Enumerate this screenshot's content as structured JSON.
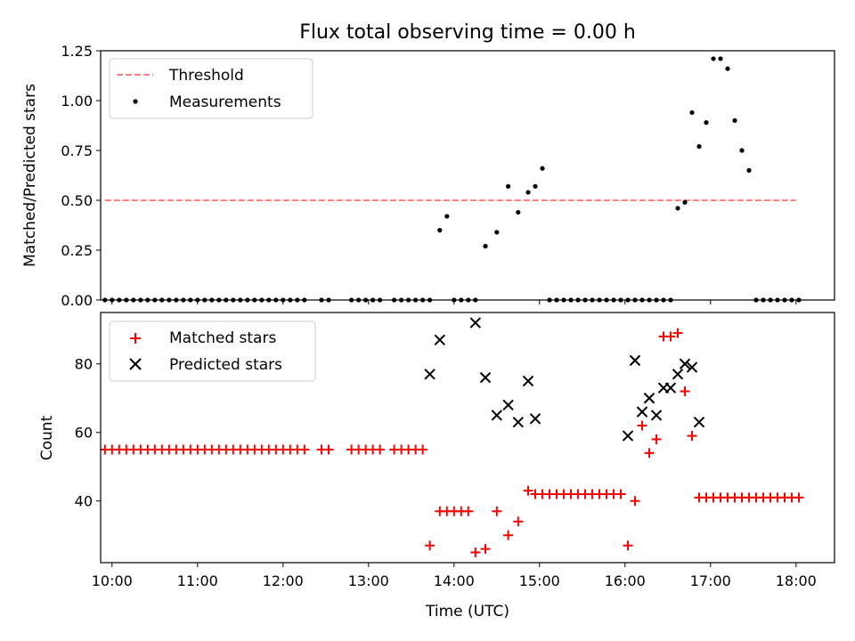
{
  "chart_data": [
    {
      "type": "scatter",
      "title": "Flux total observing time = 0.00 h",
      "xlabel": "",
      "ylabel": "Matched/Predicted stars",
      "xlim": [
        "09:52",
        "18:27"
      ],
      "ylim": [
        0.0,
        1.25
      ],
      "yticks": [
        0.0,
        0.25,
        0.5,
        0.75,
        1.0,
        1.25
      ],
      "ytick_labels": [
        "0.00",
        "0.25",
        "0.50",
        "0.75",
        "1.00",
        "1.25"
      ],
      "legend": {
        "position": "top-left",
        "entries": [
          "Threshold",
          "Measurements"
        ]
      },
      "threshold": {
        "name": "Threshold",
        "value": 0.5,
        "x_range": [
          "09:55",
          "18:00"
        ],
        "color": "#ff8080"
      },
      "series": [
        {
          "name": "Measurements",
          "color": "#000000",
          "x": [
            "09:55",
            "10:00",
            "10:05",
            "10:10",
            "10:15",
            "10:20",
            "10:25",
            "10:30",
            "10:35",
            "10:40",
            "10:45",
            "10:50",
            "10:55",
            "11:00",
            "11:05",
            "11:10",
            "11:15",
            "11:20",
            "11:25",
            "11:30",
            "11:35",
            "11:40",
            "11:45",
            "11:50",
            "11:55",
            "12:00",
            "12:05",
            "12:10",
            "12:15",
            "12:27",
            "12:32",
            "12:48",
            "12:53",
            "12:58",
            "13:03",
            "13:08",
            "13:18",
            "13:23",
            "13:28",
            "13:33",
            "13:38",
            "13:43",
            "13:50",
            "13:55",
            "14:00",
            "14:05",
            "14:10",
            "14:15",
            "14:22",
            "14:30",
            "14:38",
            "14:45",
            "14:52",
            "14:57",
            "15:02",
            "15:07",
            "15:12",
            "15:17",
            "15:22",
            "15:27",
            "15:32",
            "15:37",
            "15:42",
            "15:47",
            "15:52",
            "15:57",
            "16:02",
            "16:07",
            "16:12",
            "16:17",
            "16:22",
            "16:27",
            "16:32",
            "16:37",
            "16:42",
            "16:47",
            "16:52",
            "16:57",
            "17:02",
            "17:07",
            "17:12",
            "17:17",
            "17:22",
            "17:27",
            "17:32",
            "17:37",
            "17:42",
            "17:47",
            "17:52",
            "17:57",
            "18:02"
          ],
          "y": [
            0.0,
            0.0,
            0.0,
            0.0,
            0.0,
            0.0,
            0.0,
            0.0,
            0.0,
            0.0,
            0.0,
            0.0,
            0.0,
            0.0,
            0.0,
            0.0,
            0.0,
            0.0,
            0.0,
            0.0,
            0.0,
            0.0,
            0.0,
            0.0,
            0.0,
            0.0,
            0.0,
            0.0,
            0.0,
            0.0,
            0.0,
            0.0,
            0.0,
            0.0,
            0.0,
            0.0,
            0.0,
            0.0,
            0.0,
            0.0,
            0.0,
            0.0,
            0.35,
            0.42,
            0.0,
            0.0,
            0.0,
            0.0,
            0.27,
            0.34,
            0.57,
            0.44,
            0.54,
            0.57,
            0.66,
            0.0,
            0.0,
            0.0,
            0.0,
            0.0,
            0.0,
            0.0,
            0.0,
            0.0,
            0.0,
            0.0,
            0.0,
            0.0,
            0.0,
            0.0,
            0.0,
            0.0,
            0.0,
            0.46,
            0.49,
            0.94,
            0.77,
            0.89,
            1.21,
            1.21,
            1.16,
            0.9,
            0.75,
            0.65,
            0.0,
            0.0,
            0.0,
            0.0,
            0.0,
            0.0,
            0.0
          ]
        }
      ]
    },
    {
      "type": "scatter",
      "title": "",
      "xlabel": "Time (UTC)",
      "ylabel": "Count",
      "xlim": [
        "09:52",
        "18:27"
      ],
      "ylim": [
        22,
        95
      ],
      "yticks": [
        40,
        60,
        80
      ],
      "ytick_labels": [
        "40",
        "60",
        "80"
      ],
      "xticks": [
        "10:00",
        "11:00",
        "12:00",
        "13:00",
        "14:00",
        "15:00",
        "16:00",
        "17:00",
        "18:00"
      ],
      "xtick_labels": [
        "10:00",
        "11:00",
        "12:00",
        "13:00",
        "14:00",
        "15:00",
        "16:00",
        "17:00",
        "18:00"
      ],
      "legend": {
        "position": "top-left",
        "entries": [
          "Matched stars",
          "Predicted stars"
        ]
      },
      "series": [
        {
          "name": "Matched stars",
          "marker": "plus",
          "color": "#ff0000",
          "x": [
            "09:55",
            "10:00",
            "10:05",
            "10:10",
            "10:15",
            "10:20",
            "10:25",
            "10:30",
            "10:35",
            "10:40",
            "10:45",
            "10:50",
            "10:55",
            "11:00",
            "11:05",
            "11:10",
            "11:15",
            "11:20",
            "11:25",
            "11:30",
            "11:35",
            "11:40",
            "11:45",
            "11:50",
            "11:55",
            "12:00",
            "12:05",
            "12:10",
            "12:15",
            "12:27",
            "12:32",
            "12:48",
            "12:53",
            "12:58",
            "13:03",
            "13:08",
            "13:18",
            "13:23",
            "13:28",
            "13:33",
            "13:38",
            "13:43",
            "13:50",
            "13:55",
            "14:00",
            "14:05",
            "14:10",
            "14:15",
            "14:22",
            "14:30",
            "14:38",
            "14:45",
            "14:52",
            "14:57",
            "15:02",
            "15:07",
            "15:12",
            "15:17",
            "15:22",
            "15:27",
            "15:32",
            "15:37",
            "15:42",
            "15:47",
            "15:52",
            "15:57",
            "16:02",
            "16:07",
            "16:12",
            "16:17",
            "16:22",
            "16:27",
            "16:32",
            "16:37",
            "16:42",
            "16:47",
            "16:52",
            "16:57",
            "17:02",
            "17:07",
            "17:12",
            "17:17",
            "17:22",
            "17:27",
            "17:32",
            "17:37",
            "17:42",
            "17:47",
            "17:52",
            "17:57",
            "18:02"
          ],
          "y": [
            55,
            55,
            55,
            55,
            55,
            55,
            55,
            55,
            55,
            55,
            55,
            55,
            55,
            55,
            55,
            55,
            55,
            55,
            55,
            55,
            55,
            55,
            55,
            55,
            55,
            55,
            55,
            55,
            55,
            55,
            55,
            55,
            55,
            55,
            55,
            55,
            55,
            55,
            55,
            55,
            55,
            27,
            37,
            37,
            37,
            37,
            37,
            25,
            26,
            37,
            30,
            34,
            43,
            42,
            42,
            42,
            42,
            42,
            42,
            42,
            42,
            42,
            42,
            42,
            42,
            42,
            27,
            40,
            62,
            54,
            58,
            88,
            88,
            89,
            72,
            59,
            41,
            41,
            41,
            41,
            41,
            41,
            41,
            41,
            41,
            41,
            41,
            41,
            41,
            41,
            41
          ]
        },
        {
          "name": "Predicted stars",
          "marker": "x",
          "color": "#000000",
          "x": [
            "13:43",
            "13:50",
            "14:15",
            "14:22",
            "14:30",
            "14:38",
            "14:45",
            "14:52",
            "14:57",
            "16:02",
            "16:07",
            "16:12",
            "16:17",
            "16:22",
            "16:27",
            "16:32",
            "16:37",
            "16:42",
            "16:47",
            "16:52"
          ],
          "y": [
            77,
            87,
            92,
            76,
            65,
            68,
            63,
            75,
            64,
            59,
            81,
            66,
            70,
            65,
            73,
            73,
            77,
            80,
            79,
            63
          ]
        }
      ]
    }
  ]
}
